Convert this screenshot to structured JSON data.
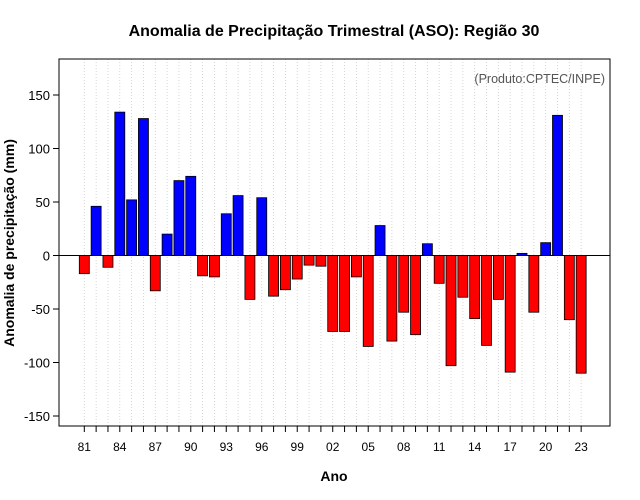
{
  "chart_data": {
    "type": "bar",
    "title": "Anomalia de Precipitação Trimestral (ASO): Região 30",
    "xlabel": "Ano",
    "ylabel": "Anomalia de precipitação (mm)",
    "credit": "(Produto:CPTEC/INPE)",
    "ylim": [
      -160,
      182
    ],
    "yticks": [
      -150,
      -100,
      -50,
      0,
      50,
      100,
      150
    ],
    "xtick_labels": [
      "81",
      "84",
      "87",
      "90",
      "93",
      "96",
      "99",
      "02",
      "05",
      "08",
      "11",
      "14",
      "17",
      "20",
      "23"
    ],
    "years": [
      1981,
      1982,
      1983,
      1984,
      1985,
      1986,
      1987,
      1988,
      1989,
      1990,
      1991,
      1992,
      1993,
      1994,
      1995,
      1996,
      1997,
      1998,
      1999,
      2000,
      2001,
      2002,
      2003,
      2004,
      2005,
      2006,
      2007,
      2008,
      2009,
      2010,
      2011,
      2012,
      2013,
      2014,
      2015,
      2016,
      2017,
      2018,
      2019,
      2020,
      2021,
      2022,
      2023
    ],
    "values": [
      -17,
      46,
      -11,
      134,
      52,
      128,
      -33,
      20,
      70,
      74,
      -19,
      -20,
      39,
      56,
      -41,
      54,
      -38,
      -32,
      -22,
      -9,
      -10,
      -71,
      -71,
      -20,
      -85,
      28,
      -80,
      -53,
      -74,
      11,
      -26,
      -103,
      -39,
      -59,
      -84,
      -41,
      -109,
      2,
      -53,
      12,
      131,
      -60,
      -110
    ],
    "colors": {
      "positive": "#0000ff",
      "negative": "#ff0000",
      "zero_line": "#000000",
      "grid": "#cccccc"
    }
  }
}
